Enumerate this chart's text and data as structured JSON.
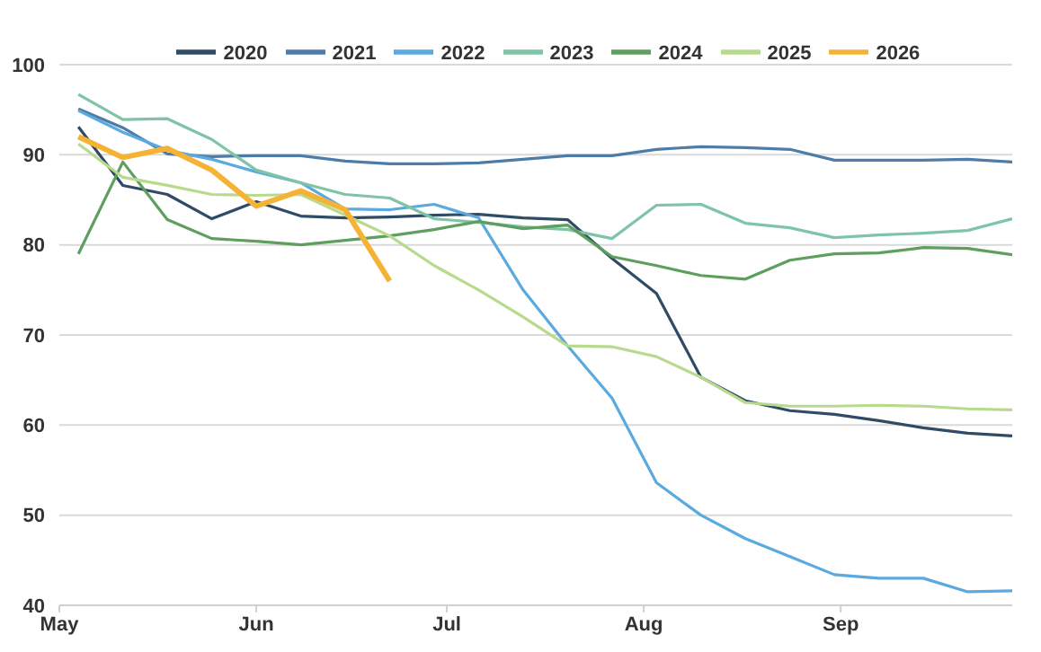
{
  "chart_data": {
    "type": "line",
    "x": [
      "--05-04",
      "--05-11",
      "--05-18",
      "--05-25",
      "--06-01",
      "--06-08",
      "--06-15",
      "--06-22",
      "--06-29",
      "--07-06",
      "--07-13",
      "--07-20",
      "--07-27",
      "--08-03",
      "--08-10",
      "--08-17",
      "--08-24",
      "--08-31",
      "--09-07",
      "--09-14",
      "--09-21",
      "--09-28"
    ],
    "series": [
      {
        "name": "2020",
        "color": "#2f4b66",
        "values": [
          93.1,
          86.6,
          85.6,
          82.9,
          84.8,
          83.2,
          83.0,
          83.1,
          83.3,
          83.4,
          83.0,
          82.8,
          78.5,
          74.6,
          65.3,
          62.7,
          61.6,
          61.2,
          60.5,
          59.7,
          59.1,
          58.8
        ]
      },
      {
        "name": "2021",
        "color": "#4d7ca8",
        "values": [
          95.1,
          93.0,
          90.1,
          89.8,
          89.9,
          89.9,
          89.3,
          89.0,
          89.0,
          89.1,
          89.5,
          89.9,
          89.9,
          90.6,
          90.9,
          90.8,
          90.6,
          89.4,
          89.4,
          89.4,
          89.5,
          89.2
        ]
      },
      {
        "name": "2022",
        "color": "#5aa9e0",
        "values": [
          94.9,
          92.5,
          90.5,
          89.5,
          88.1,
          86.9,
          84.0,
          83.9,
          84.5,
          83.0,
          75.0,
          68.8,
          63.0,
          53.6,
          50.0,
          47.4,
          45.4,
          43.4,
          43.0,
          43.0,
          41.5,
          41.6
        ]
      },
      {
        "name": "2023",
        "color": "#7fc4a6",
        "values": [
          96.7,
          93.9,
          94.0,
          91.7,
          88.3,
          86.9,
          85.6,
          85.2,
          82.9,
          82.5,
          82.0,
          81.7,
          80.7,
          84.4,
          84.5,
          82.4,
          81.9,
          80.8,
          81.1,
          81.3,
          81.6,
          82.9
        ]
      },
      {
        "name": "2024",
        "color": "#5e9e5e",
        "values": [
          79.0,
          89.2,
          82.8,
          80.7,
          80.4,
          80.0,
          80.5,
          81.0,
          81.7,
          82.6,
          81.8,
          82.2,
          78.7,
          77.7,
          76.6,
          76.2,
          78.3,
          79.0,
          79.1,
          79.7,
          79.6,
          78.9
        ]
      },
      {
        "name": "2025",
        "color": "#b8da8c",
        "values": [
          91.2,
          87.5,
          86.6,
          85.6,
          85.5,
          85.6,
          83.3,
          81.0,
          77.7,
          75.0,
          72.0,
          68.8,
          68.7,
          67.6,
          65.3,
          62.5,
          62.1,
          62.1,
          62.2,
          62.1,
          61.8,
          61.7
        ]
      },
      {
        "name": "2026",
        "color": "#f5b335",
        "values": [
          92.0,
          89.7,
          90.7,
          88.3,
          84.3,
          86.0,
          83.9,
          76.0,
          null,
          null,
          null,
          null,
          null,
          null,
          null,
          null,
          null,
          null,
          null,
          null,
          null,
          null
        ]
      }
    ],
    "xlim": [
      "--05-01",
      "--09-28"
    ],
    "xticks": [
      {
        "value": "--05-01",
        "label": "May"
      },
      {
        "value": "--06-01",
        "label": "Jun"
      },
      {
        "value": "--07-01",
        "label": "Jul"
      },
      {
        "value": "--08-01",
        "label": "Aug"
      },
      {
        "value": "--09-01",
        "label": "Sep"
      }
    ],
    "ylim": [
      40,
      100
    ],
    "yticks": [
      40,
      50,
      60,
      70,
      80,
      90,
      100
    ],
    "grid": "y",
    "legend": "top",
    "marker": "none",
    "line_style": "solid"
  }
}
